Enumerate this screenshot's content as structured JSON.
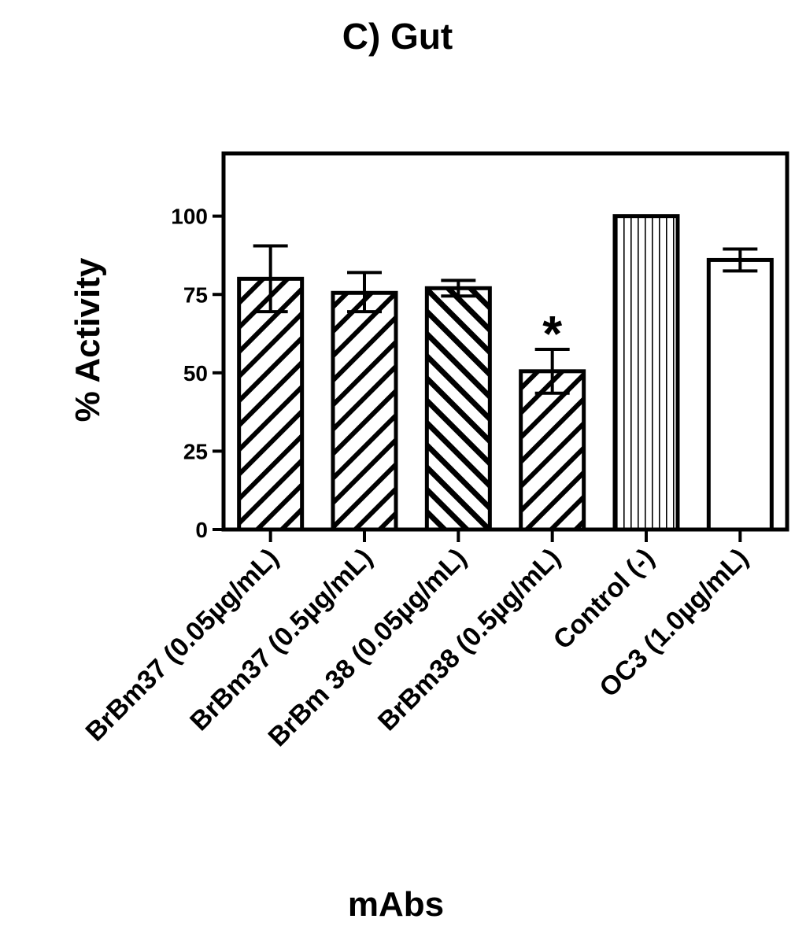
{
  "chart_data": {
    "type": "bar",
    "title": "C) Gut",
    "xlabel": "mAbs",
    "ylabel": "% Activity",
    "ylim": [
      0,
      120
    ],
    "yticks": [
      0,
      25,
      50,
      75,
      100
    ],
    "grid": false,
    "categories": [
      "BrBm37 (0.05µg/mL)",
      "BrBm37 (0.5µg/mL)",
      "BrBm 38 (0.05µg/mL)",
      "BrBm38 (0.5µg/mL)",
      "Control (-)",
      "OC3 (1.0µg/mL)"
    ],
    "values": [
      80,
      75.5,
      77,
      50.5,
      100,
      86
    ],
    "error_low": [
      69.5,
      69.5,
      74.5,
      43.5,
      100,
      82.5
    ],
    "error_high": [
      90.5,
      82,
      79.5,
      57.5,
      100,
      89.5
    ],
    "patterns": [
      "diagonal-forward",
      "diagonal-forward",
      "diagonal-back",
      "diagonal-forward",
      "vertical-lines",
      "none"
    ],
    "annotations": [
      {
        "category_index": 3,
        "text": "*"
      }
    ]
  }
}
